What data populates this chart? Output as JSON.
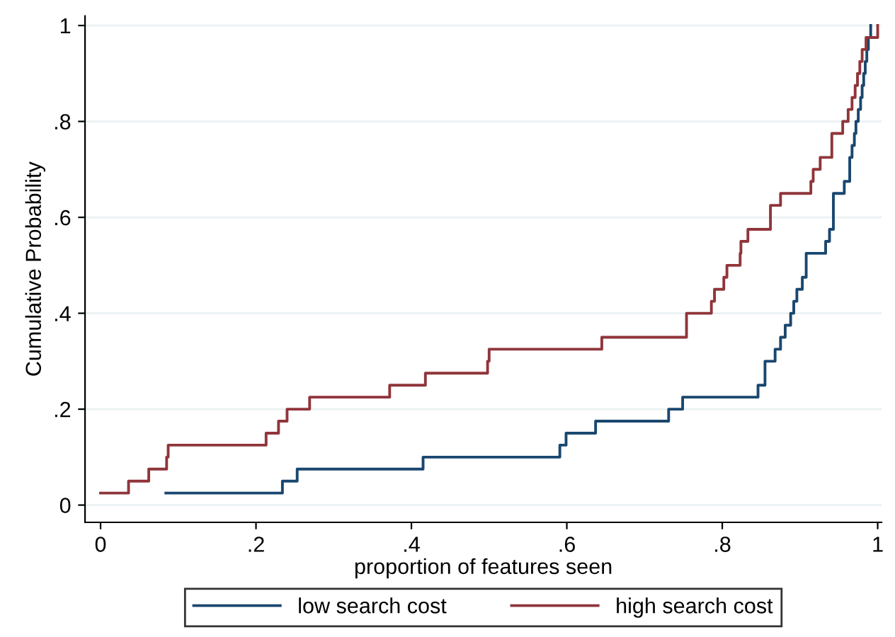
{
  "chart_data": {
    "type": "step",
    "xlabel": "proportion of features seen",
    "ylabel": "Cumulative Probability",
    "xlim": [
      -0.02,
      1.005
    ],
    "ylim": [
      -0.036,
      1.02
    ],
    "xticks": [
      0,
      {
        "value": 0.2,
        "label": ".2"
      },
      {
        "value": 0.4,
        "label": ".4"
      },
      {
        "value": 0.6,
        "label": ".6"
      },
      {
        "value": 0.8,
        "label": ".8"
      },
      1
    ],
    "yticks": [
      0,
      {
        "value": 0.2,
        "label": ".2"
      },
      {
        "value": 0.4,
        "label": ".4"
      },
      {
        "value": 0.6,
        "label": ".6"
      },
      {
        "value": 0.8,
        "label": ".8"
      },
      1
    ],
    "grid": "y",
    "legend": "bottom",
    "series": [
      {
        "name": "low search cost",
        "color": "#1a476f",
        "x": [
          0.084,
          0.234,
          0.253,
          0.415,
          0.591,
          0.599,
          0.637,
          0.731,
          0.749,
          0.846,
          0.855,
          0.868,
          0.875,
          0.881,
          0.888,
          0.892,
          0.896,
          0.903,
          0.908,
          0.933,
          0.938,
          0.943,
          0.957,
          0.964,
          0.967,
          0.97,
          0.972,
          0.975,
          0.978,
          0.98,
          0.982,
          0.984,
          0.986,
          0.988,
          0.991
        ],
        "values": [
          0.025,
          0.05,
          0.075,
          0.1,
          0.125,
          0.15,
          0.175,
          0.2,
          0.225,
          0.25,
          0.3,
          0.325,
          0.35,
          0.375,
          0.4,
          0.425,
          0.45,
          0.475,
          0.525,
          0.55,
          0.575,
          0.65,
          0.675,
          0.725,
          0.75,
          0.775,
          0.8,
          0.825,
          0.85,
          0.875,
          0.9,
          0.925,
          0.95,
          0.975,
          1.0
        ]
      },
      {
        "name": "high search cost",
        "color": "#90353b",
        "x": [
          0,
          0.036,
          0.062,
          0.085,
          0.087,
          0.213,
          0.229,
          0.24,
          0.269,
          0.372,
          0.418,
          0.498,
          0.5,
          0.645,
          0.754,
          0.786,
          0.79,
          0.802,
          0.806,
          0.823,
          0.824,
          0.833,
          0.862,
          0.875,
          0.914,
          0.917,
          0.926,
          0.941,
          0.955,
          0.962,
          0.967,
          0.971,
          0.974,
          0.977,
          0.98,
          0.985,
          1.0
        ],
        "values": [
          0.025,
          0.05,
          0.075,
          0.1,
          0.125,
          0.15,
          0.175,
          0.2,
          0.225,
          0.25,
          0.275,
          0.3,
          0.325,
          0.35,
          0.4,
          0.425,
          0.45,
          0.475,
          0.5,
          0.525,
          0.55,
          0.575,
          0.625,
          0.65,
          0.675,
          0.7,
          0.725,
          0.775,
          0.8,
          0.825,
          0.85,
          0.875,
          0.9,
          0.925,
          0.95,
          0.975,
          1.0
        ]
      }
    ]
  }
}
